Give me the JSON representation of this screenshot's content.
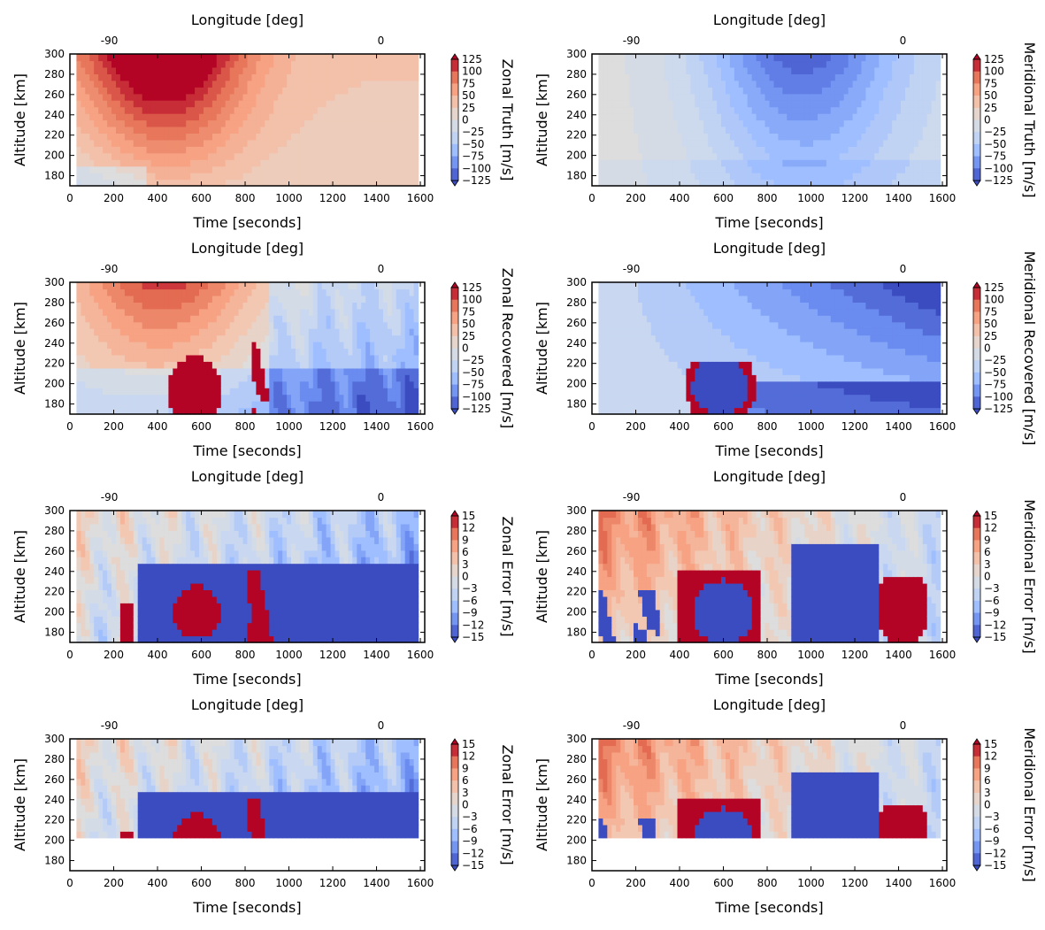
{
  "palette": {
    "stops": [
      "#3b4cc0",
      "#6a8bef",
      "#9ebeff",
      "#c9d8f0",
      "#dddddd",
      "#f2c8b3",
      "#f6a283",
      "#e36b51",
      "#b40426"
    ],
    "frame": "#000000"
  },
  "chart_data": [
    {
      "type": "heatmap",
      "variant": "truth-zonal",
      "xlabel": "Time [seconds]",
      "ylabel": "Altitude [km]",
      "top_axis_label": "Longitude [deg]",
      "xlim": [
        0,
        1620
      ],
      "ylim": [
        170,
        300
      ],
      "xticks": [
        "0",
        "200",
        "400",
        "600",
        "800",
        "1000",
        "1200",
        "1400",
        "1600"
      ],
      "yticks": [
        "180",
        "200",
        "220",
        "240",
        "260",
        "280",
        "300"
      ],
      "top_ticks": [
        {
          "label": "-90",
          "time": 180
        },
        {
          "label": "0",
          "time": 1420
        }
      ],
      "colorbar": {
        "label": "Zonal Truth [m/s]",
        "range": [
          -125,
          125
        ],
        "ticks": [
          "125",
          "100",
          "75",
          "50",
          "25",
          "0",
          "−25",
          "−50",
          "−75",
          "−100",
          "−125"
        ]
      }
    },
    {
      "type": "heatmap",
      "variant": "truth-meridional",
      "xlabel": "Time [seconds]",
      "ylabel": "Altitude [km]",
      "top_axis_label": "Longitude [deg]",
      "xlim": [
        0,
        1620
      ],
      "ylim": [
        170,
        300
      ],
      "xticks": [
        "0",
        "200",
        "400",
        "600",
        "800",
        "1000",
        "1200",
        "1400",
        "1600"
      ],
      "yticks": [
        "180",
        "200",
        "220",
        "240",
        "260",
        "280",
        "300"
      ],
      "top_ticks": [
        {
          "label": "-90",
          "time": 180
        },
        {
          "label": "0",
          "time": 1420
        }
      ],
      "colorbar": {
        "label": "Meridional Truth [m/s]",
        "range": [
          -125,
          125
        ],
        "ticks": [
          "125",
          "100",
          "75",
          "50",
          "25",
          "0",
          "−25",
          "−50",
          "−75",
          "−100",
          "−125"
        ]
      }
    },
    {
      "type": "heatmap",
      "variant": "recovered-zonal",
      "xlabel": "Time [seconds]",
      "ylabel": "Altitude [km]",
      "top_axis_label": "Longitude [deg]",
      "xlim": [
        0,
        1620
      ],
      "ylim": [
        170,
        300
      ],
      "xticks": [
        "0",
        "200",
        "400",
        "600",
        "800",
        "1000",
        "1200",
        "1400",
        "1600"
      ],
      "yticks": [
        "180",
        "200",
        "220",
        "240",
        "260",
        "280",
        "300"
      ],
      "top_ticks": [
        {
          "label": "-90",
          "time": 180
        },
        {
          "label": "0",
          "time": 1420
        }
      ],
      "colorbar": {
        "label": "Zonal Recovered [m/s]",
        "range": [
          -125,
          125
        ],
        "ticks": [
          "125",
          "100",
          "75",
          "50",
          "25",
          "0",
          "−25",
          "−50",
          "−75",
          "−100",
          "−125"
        ]
      }
    },
    {
      "type": "heatmap",
      "variant": "recovered-meridional",
      "xlabel": "Time [seconds]",
      "ylabel": "Altitude [km]",
      "top_axis_label": "Longitude [deg]",
      "xlim": [
        0,
        1620
      ],
      "ylim": [
        170,
        300
      ],
      "xticks": [
        "0",
        "200",
        "400",
        "600",
        "800",
        "1000",
        "1200",
        "1400",
        "1600"
      ],
      "yticks": [
        "180",
        "200",
        "220",
        "240",
        "260",
        "280",
        "300"
      ],
      "top_ticks": [
        {
          "label": "-90",
          "time": 180
        },
        {
          "label": "0",
          "time": 1420
        }
      ],
      "colorbar": {
        "label": "Meridional Recovered [m/s]",
        "range": [
          -125,
          125
        ],
        "ticks": [
          "125",
          "100",
          "75",
          "50",
          "25",
          "0",
          "−25",
          "−50",
          "−75",
          "−100",
          "−125"
        ]
      }
    },
    {
      "type": "heatmap",
      "variant": "error-zonal",
      "xlabel": "Time [seconds]",
      "ylabel": "Altitude [km]",
      "top_axis_label": "Longitude [deg]",
      "xlim": [
        0,
        1620
      ],
      "ylim": [
        170,
        300
      ],
      "xticks": [
        "0",
        "200",
        "400",
        "600",
        "800",
        "1000",
        "1200",
        "1400",
        "1600"
      ],
      "yticks": [
        "180",
        "200",
        "220",
        "240",
        "260",
        "280",
        "300"
      ],
      "top_ticks": [
        {
          "label": "-90",
          "time": 180
        },
        {
          "label": "0",
          "time": 1420
        }
      ],
      "colorbar": {
        "label": "Zonal Error [m/s]",
        "range": [
          -15,
          15
        ],
        "ticks": [
          "15",
          "12",
          "9",
          "6",
          "3",
          "0",
          "−3",
          "−6",
          "−9",
          "−12",
          "−15"
        ]
      }
    },
    {
      "type": "heatmap",
      "variant": "error-meridional",
      "xlabel": "Time [seconds]",
      "ylabel": "Altitude [km]",
      "top_axis_label": "Longitude [deg]",
      "xlim": [
        0,
        1620
      ],
      "ylim": [
        170,
        300
      ],
      "xticks": [
        "0",
        "200",
        "400",
        "600",
        "800",
        "1000",
        "1200",
        "1400",
        "1600"
      ],
      "yticks": [
        "180",
        "200",
        "220",
        "240",
        "260",
        "280",
        "300"
      ],
      "top_ticks": [
        {
          "label": "-90",
          "time": 180
        },
        {
          "label": "0",
          "time": 1420
        }
      ],
      "colorbar": {
        "label": "Meridional Error [m/s]",
        "range": [
          -15,
          15
        ],
        "ticks": [
          "15",
          "12",
          "9",
          "6",
          "3",
          "0",
          "−3",
          "−6",
          "−9",
          "−12",
          "−15"
        ]
      }
    },
    {
      "type": "heatmap",
      "variant": "error-zonal-masked",
      "mask_below_km": 200,
      "xlabel": "Time [seconds]",
      "ylabel": "Altitude [km]",
      "top_axis_label": "Longitude [deg]",
      "xlim": [
        0,
        1620
      ],
      "ylim": [
        170,
        300
      ],
      "xticks": [
        "0",
        "200",
        "400",
        "600",
        "800",
        "1000",
        "1200",
        "1400",
        "1600"
      ],
      "yticks": [
        "180",
        "200",
        "220",
        "240",
        "260",
        "280",
        "300"
      ],
      "top_ticks": [
        {
          "label": "-90",
          "time": 180
        },
        {
          "label": "0",
          "time": 1420
        }
      ],
      "colorbar": {
        "label": "Zonal Error [m/s]",
        "range": [
          -15,
          15
        ],
        "ticks": [
          "15",
          "12",
          "9",
          "6",
          "3",
          "0",
          "−3",
          "−6",
          "−9",
          "−12",
          "−15"
        ]
      }
    },
    {
      "type": "heatmap",
      "variant": "error-meridional-masked",
      "mask_below_km": 200,
      "xlabel": "Time [seconds]",
      "ylabel": "Altitude [km]",
      "top_axis_label": "Longitude [deg]",
      "xlim": [
        0,
        1620
      ],
      "ylim": [
        170,
        300
      ],
      "xticks": [
        "0",
        "200",
        "400",
        "600",
        "800",
        "1000",
        "1200",
        "1400",
        "1600"
      ],
      "yticks": [
        "180",
        "200",
        "220",
        "240",
        "260",
        "280",
        "300"
      ],
      "top_ticks": [
        {
          "label": "-90",
          "time": 180
        },
        {
          "label": "0",
          "time": 1420
        }
      ],
      "colorbar": {
        "label": "Meridional Error [m/s]",
        "range": [
          -15,
          15
        ],
        "ticks": [
          "15",
          "12",
          "9",
          "6",
          "3",
          "0",
          "−3",
          "−6",
          "−9",
          "−12",
          "−15"
        ]
      }
    }
  ]
}
